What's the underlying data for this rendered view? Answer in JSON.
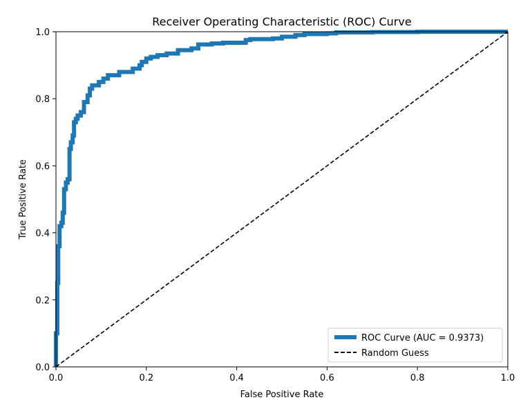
{
  "chart_data": {
    "type": "line",
    "title": "Receiver Operating Characteristic (ROC) Curve",
    "xlabel": "False Positive Rate",
    "ylabel": "True Positive Rate",
    "xlim": [
      0.0,
      1.0
    ],
    "ylim": [
      0.0,
      1.0
    ],
    "xticks": [
      "0.0",
      "0.2",
      "0.4",
      "0.6",
      "0.8",
      "1.0"
    ],
    "yticks": [
      "0.0",
      "0.2",
      "0.4",
      "0.6",
      "0.8",
      "1.0"
    ],
    "grid": false,
    "legend_position": "lower-right",
    "series": [
      {
        "name": "ROC Curve (AUC = 0.9373)",
        "color": "#1f77b4",
        "style": "solid",
        "x": [
          0.0,
          0.0,
          0.003,
          0.003,
          0.005,
          0.005,
          0.008,
          0.008,
          0.012,
          0.012,
          0.015,
          0.015,
          0.018,
          0.018,
          0.022,
          0.022,
          0.026,
          0.026,
          0.03,
          0.03,
          0.033,
          0.033,
          0.037,
          0.037,
          0.04,
          0.04,
          0.044,
          0.044,
          0.048,
          0.048,
          0.055,
          0.055,
          0.062,
          0.062,
          0.07,
          0.07,
          0.075,
          0.075,
          0.08,
          0.08,
          0.085,
          0.085,
          0.095,
          0.095,
          0.105,
          0.105,
          0.115,
          0.115,
          0.125,
          0.125,
          0.14,
          0.14,
          0.155,
          0.155,
          0.17,
          0.17,
          0.185,
          0.185,
          0.19,
          0.19,
          0.2,
          0.2,
          0.21,
          0.21,
          0.225,
          0.225,
          0.245,
          0.245,
          0.27,
          0.27,
          0.3,
          0.3,
          0.315,
          0.315,
          0.345,
          0.345,
          0.37,
          0.37,
          0.42,
          0.42,
          0.43,
          0.43,
          0.48,
          0.48,
          0.5,
          0.5,
          0.53,
          0.53,
          0.55,
          0.55,
          0.6,
          0.6,
          0.62,
          0.62,
          0.7,
          0.7,
          0.8,
          0.8,
          0.88,
          0.88,
          1.0
        ],
        "y": [
          0.0,
          0.1,
          0.1,
          0.25,
          0.25,
          0.36,
          0.36,
          0.42,
          0.42,
          0.43,
          0.43,
          0.46,
          0.46,
          0.53,
          0.53,
          0.55,
          0.55,
          0.56,
          0.56,
          0.65,
          0.65,
          0.67,
          0.67,
          0.69,
          0.69,
          0.73,
          0.73,
          0.74,
          0.74,
          0.75,
          0.75,
          0.76,
          0.76,
          0.79,
          0.79,
          0.81,
          0.81,
          0.83,
          0.83,
          0.84,
          0.84,
          0.84,
          0.84,
          0.85,
          0.85,
          0.86,
          0.86,
          0.87,
          0.87,
          0.87,
          0.87,
          0.88,
          0.88,
          0.88,
          0.88,
          0.89,
          0.89,
          0.9,
          0.9,
          0.91,
          0.91,
          0.92,
          0.92,
          0.925,
          0.925,
          0.93,
          0.93,
          0.935,
          0.935,
          0.945,
          0.945,
          0.95,
          0.95,
          0.962,
          0.962,
          0.965,
          0.965,
          0.967,
          0.967,
          0.975,
          0.975,
          0.978,
          0.978,
          0.98,
          0.98,
          0.985,
          0.985,
          0.99,
          0.99,
          0.993,
          0.993,
          0.995,
          0.995,
          0.998,
          0.998,
          0.999,
          0.999,
          1.0,
          1.0,
          1.0,
          1.0
        ]
      },
      {
        "name": "Random Guess",
        "color": "#000000",
        "style": "dashed",
        "x": [
          0.0,
          1.0
        ],
        "y": [
          0.0,
          1.0
        ]
      }
    ]
  }
}
